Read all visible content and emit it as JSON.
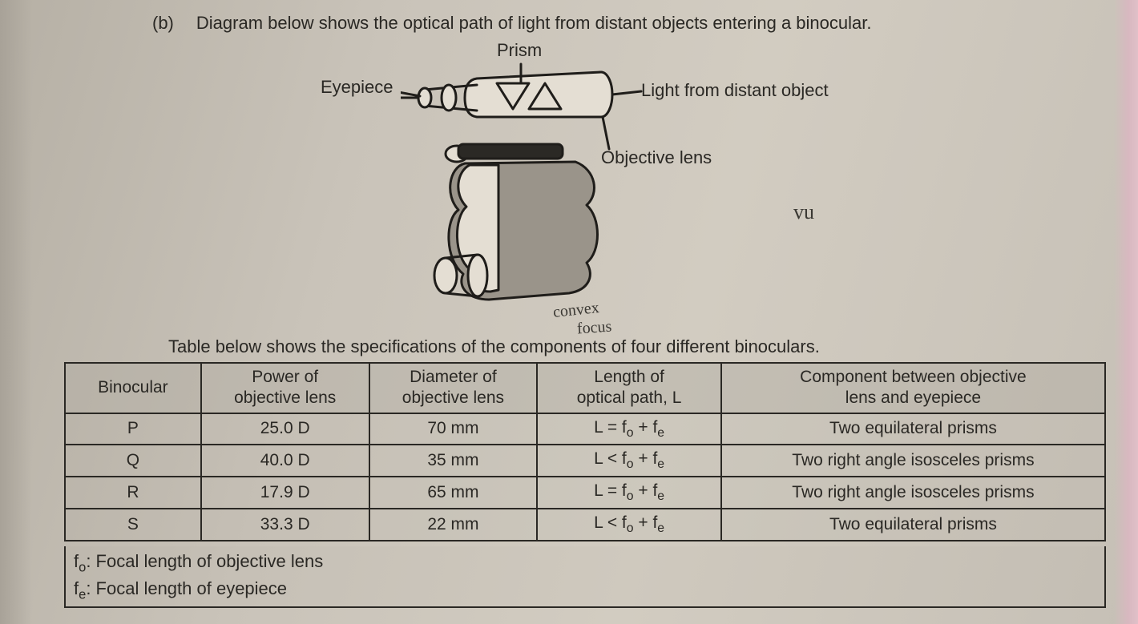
{
  "question": {
    "label": "(b)",
    "text": "Diagram below shows the optical path of light from distant objects entering a binocular."
  },
  "diagram": {
    "labels": {
      "prism": "Prism",
      "eyepiece": "Eyepiece",
      "light": "Light from distant object",
      "objective": "Objective lens"
    },
    "handwriting": {
      "vu": "vu",
      "convex": "convex",
      "focus": "focus"
    },
    "colors": {
      "stroke": "#1f1d1a",
      "fillLight": "#e4ded3",
      "fillShade": "#9a948a",
      "fillDark": "#2b2925"
    }
  },
  "table": {
    "caption": "Table below shows the specifications of the components of four different binoculars.",
    "columns": [
      "Binocular",
      "Power of\nobjective lens",
      "Diameter of\nobjective lens",
      "Length of\noptical path, L",
      "Component between objective\nlens and eyepiece"
    ],
    "col_widths": [
      "170px",
      "210px",
      "210px",
      "230px",
      "480px"
    ],
    "rows": [
      [
        "P",
        "25.0 D",
        "70 mm",
        "L = f₀ + fₑ",
        "Two equilateral prisms"
      ],
      [
        "Q",
        "40.0 D",
        "35 mm",
        "L < f₀ + fₑ",
        "Two right angle isosceles prisms"
      ],
      [
        "R",
        "17.9 D",
        "65 mm",
        "L = f₀ + fₑ",
        "Two right angle isosceles prisms"
      ],
      [
        "S",
        "33.3 D",
        "22 mm",
        "L < f₀ + fₑ",
        "Two equilateral prisms"
      ]
    ]
  },
  "footnotes": {
    "f0": "f₀: Focal length of objective lens",
    "fe": "fₑ: Focal length of eyepiece"
  }
}
